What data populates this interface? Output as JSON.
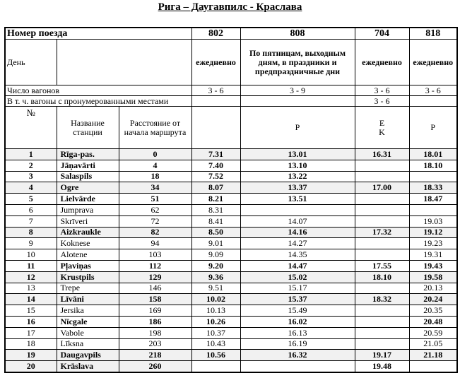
{
  "title": "Рига – Даугавпилс - Краслава",
  "header": {
    "train_label": "Номер поезда",
    "trains": [
      "802",
      "808",
      "704",
      "818"
    ],
    "day_label": "День",
    "days": [
      "ежедневно",
      "По пятницам, выходным дням, в праздники и предпраздничные дни",
      "ежедневно",
      "ежедневно"
    ],
    "cars_label": "Число вагонов",
    "cars": [
      "3 - 6",
      "3 - 9",
      "3 - 6",
      "3 - 6"
    ],
    "reserved_label": "В т.  ч. вагоны с пронумерованными местами",
    "reserved": [
      "",
      "",
      "3 - 6",
      ""
    ],
    "no_label": "№",
    "station_label": "Название станции",
    "distance_label": "Расстояние от начала маршрута",
    "markers": [
      "",
      "P",
      "E\nK",
      "P"
    ]
  },
  "rows": [
    {
      "no": "1",
      "station": "Rīga-pas.",
      "dist": "0",
      "t": [
        "7.31",
        "13.01",
        "16.31",
        "18.01"
      ],
      "bold": true,
      "grey": true
    },
    {
      "no": "2",
      "station": "Jāņavārti",
      "dist": "4",
      "t": [
        "7.40",
        "13.10",
        "",
        "18.10"
      ],
      "bold": true,
      "grey": false
    },
    {
      "no": "3",
      "station": "Salaspils",
      "dist": "18",
      "t": [
        "7.52",
        "13.22",
        "",
        ""
      ],
      "bold": true,
      "grey": false
    },
    {
      "no": "4",
      "station": "Ogre",
      "dist": "34",
      "t": [
        "8.07",
        "13.37",
        "17.00",
        "18.33"
      ],
      "bold": true,
      "grey": true
    },
    {
      "no": "5",
      "station": "Lielvārde",
      "dist": "51",
      "t": [
        "8.21",
        "13.51",
        "",
        "18.47"
      ],
      "bold": true,
      "grey": false
    },
    {
      "no": "6",
      "station": "Jumprava",
      "dist": "62",
      "t": [
        "8.31",
        "",
        "",
        ""
      ],
      "bold": false,
      "grey": false
    },
    {
      "no": "7",
      "station": "Skrīveri",
      "dist": "72",
      "t": [
        "8.41",
        "14.07",
        "",
        "19.03"
      ],
      "bold": false,
      "grey": false
    },
    {
      "no": "8",
      "station": "Aizkraukle",
      "dist": "82",
      "t": [
        "8.50",
        "14.16",
        "17.32",
        "19.12"
      ],
      "bold": true,
      "grey": true
    },
    {
      "no": "9",
      "station": "Koknese",
      "dist": "94",
      "t": [
        "9.01",
        "14.27",
        "",
        "19.23"
      ],
      "bold": false,
      "grey": false
    },
    {
      "no": "10",
      "station": "Alotene",
      "dist": "103",
      "t": [
        "9.09",
        "14.35",
        "",
        "19.31"
      ],
      "bold": false,
      "grey": false
    },
    {
      "no": "11",
      "station": "Pļaviņas",
      "dist": "112",
      "t": [
        "9.20",
        "14.47",
        "17.55",
        "19.43"
      ],
      "bold": true,
      "grey": false
    },
    {
      "no": "12",
      "station": "Krustpils",
      "dist": "129",
      "t": [
        "9.36",
        "15.02",
        "18.10",
        "19.58"
      ],
      "bold": true,
      "grey": true
    },
    {
      "no": "13",
      "station": "Trepe",
      "dist": "146",
      "t": [
        "9.51",
        "15.17",
        "",
        "20.13"
      ],
      "bold": false,
      "grey": false
    },
    {
      "no": "14",
      "station": "Līvāni",
      "dist": "158",
      "t": [
        "10.02",
        "15.37",
        "18.32",
        "20.24"
      ],
      "bold": true,
      "grey": true
    },
    {
      "no": "15",
      "station": "Jersika",
      "dist": "169",
      "t": [
        "10.13",
        "15.49",
        "",
        "20.35"
      ],
      "bold": false,
      "grey": false
    },
    {
      "no": "16",
      "station": "Nīcgale",
      "dist": "186",
      "t": [
        "10.26",
        "16.02",
        "",
        "20.48"
      ],
      "bold": true,
      "grey": false
    },
    {
      "no": "17",
      "station": "Vabole",
      "dist": "198",
      "t": [
        "10.37",
        "16.13",
        "",
        "20.59"
      ],
      "bold": false,
      "grey": false
    },
    {
      "no": "18",
      "station": "Līksna",
      "dist": "203",
      "t": [
        "10.43",
        "16.19",
        "",
        "21.05"
      ],
      "bold": false,
      "grey": false
    },
    {
      "no": "19",
      "station": "Daugavpils",
      "dist": "218",
      "t": [
        "10.56",
        "16.32",
        "19.17",
        "21.18"
      ],
      "bold": true,
      "grey": true
    },
    {
      "no": "20",
      "station": "Krāslava",
      "dist": "260",
      "t": [
        "",
        "",
        "19.48",
        ""
      ],
      "bold": true,
      "grey": false
    }
  ]
}
